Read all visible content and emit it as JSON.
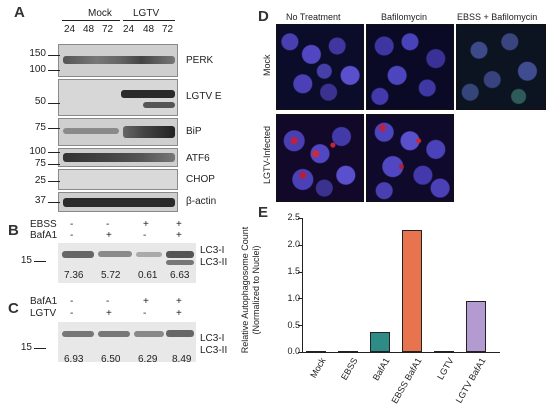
{
  "panelA": {
    "letter": "A",
    "groups": [
      "Mock",
      "LGTV"
    ],
    "timepoints": [
      "24",
      "48",
      "72",
      "24",
      "48",
      "72"
    ],
    "blots": [
      {
        "label": "PERK",
        "markers": [
          "150",
          "100"
        ]
      },
      {
        "label": "LGTV E",
        "markers": [
          "50"
        ]
      },
      {
        "label": "BiP",
        "markers": [
          "75"
        ]
      },
      {
        "label": "ATF6",
        "markers": [
          "100",
          "75"
        ]
      },
      {
        "label": "CHOP",
        "markers": [
          "25"
        ]
      },
      {
        "label": "β-actin",
        "markers": [
          "37"
        ]
      }
    ]
  },
  "panelB": {
    "letter": "B",
    "rows": [
      {
        "label": "EBSS",
        "signs": [
          "-",
          "-",
          "+",
          "+"
        ]
      },
      {
        "label": "BafA1",
        "signs": [
          "-",
          "+",
          "-",
          "+"
        ]
      }
    ],
    "marker": "15",
    "band_labels": [
      "LC3-I",
      "LC3-II"
    ],
    "ratios": [
      "7.36",
      "5.72",
      "0.61",
      "6.63"
    ]
  },
  "panelC": {
    "letter": "C",
    "rows": [
      {
        "label": "BafA1",
        "signs": [
          "-",
          "-",
          "+",
          "+"
        ]
      },
      {
        "label": "LGTV",
        "signs": [
          "-",
          "+",
          "-",
          "+"
        ]
      }
    ],
    "marker": "15",
    "band_labels": [
      "LC3-I",
      "LC3-II"
    ],
    "ratios": [
      "6.93",
      "6.50",
      "6.29",
      "8.49"
    ]
  },
  "panelD": {
    "letter": "D",
    "columns": [
      "No Treatment",
      "Bafilomycin",
      "EBSS + Bafilomycin"
    ],
    "rows": [
      "Mock",
      "LGTV-Infected"
    ]
  },
  "panelE": {
    "letter": "E",
    "ylabel_line1": "Relative Autophagosome Count",
    "ylabel_line2": "(Normalized to Nuclei)",
    "yticks": [
      "0.0",
      "0.5",
      "1.0",
      "1.5",
      "2.0",
      "2.5"
    ]
  },
  "chart_data": {
    "type": "bar",
    "categories": [
      "Mock",
      "EBSS",
      "BafA1",
      "EBSS BafA1",
      "LGTV",
      "LGTV BafA1"
    ],
    "values": [
      0.01,
      0.0,
      0.38,
      2.27,
      0.0,
      0.96
    ],
    "colors": [
      "#3a3a3a",
      "#3a3a3a",
      "#2e8b86",
      "#e8734f",
      "#3a3a3a",
      "#b39ad1"
    ],
    "ylabel": "Relative Autophagosome Count (Normalized to Nuclei)",
    "ylim": [
      0,
      2.5
    ]
  }
}
